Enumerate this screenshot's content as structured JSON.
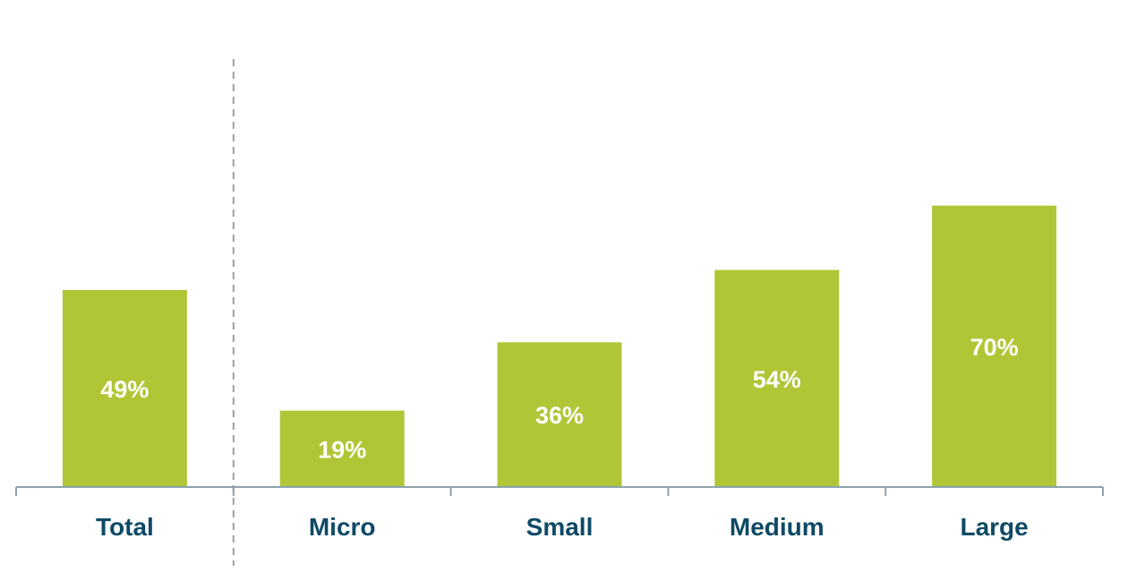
{
  "chart_data": {
    "type": "bar",
    "categories": [
      "Total",
      "Micro",
      "Small",
      "Medium",
      "Large"
    ],
    "values": [
      49,
      19,
      36,
      54,
      70
    ],
    "value_labels": [
      "49%",
      "19%",
      "36%",
      "54%",
      "70%"
    ],
    "title": "",
    "xlabel": "",
    "ylabel": "",
    "ylim": [
      0,
      100
    ],
    "grid": false,
    "legend": "none",
    "separator_after_category": "Total",
    "colors": {
      "bar": "#b0c636",
      "bar_label": "#ffffff",
      "category_label": "#0e4a66",
      "axis": "#8fa1ad",
      "separator": "#9e9e9e"
    }
  }
}
